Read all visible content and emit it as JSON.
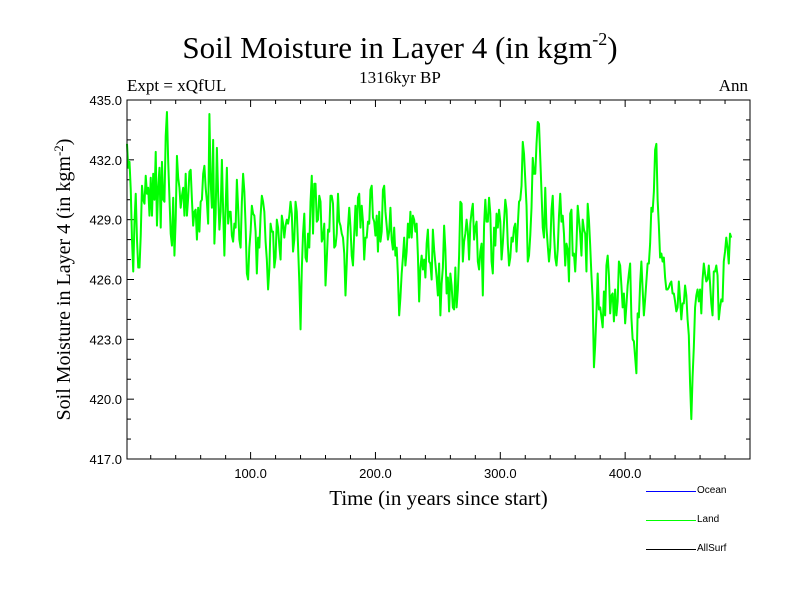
{
  "header": {
    "title": "Soil Moisture in Layer 4 (in kgm",
    "title_sup": "-2",
    "title_end": ")",
    "subtitle": "1316kyr BP",
    "expt": "Expt = xQfUL",
    "season": "Ann"
  },
  "legend": [
    {
      "label": "Ocean",
      "color": "#0000ff"
    },
    {
      "label": "Land",
      "color": "#00ff00"
    },
    {
      "label": "AllSurf",
      "color": "#000000"
    }
  ],
  "chart_data": {
    "type": "line",
    "title": "Soil Moisture in Layer 4 (in kgm-2)",
    "xlabel": "Time (in years since start)",
    "ylabel": "Soil Moisture in Layer 4 (in kgm-2)",
    "xlim": [
      1,
      500
    ],
    "ylim": [
      417.0,
      435.0
    ],
    "xticks": [
      100,
      200,
      300,
      400
    ],
    "xtick_labels": [
      "100.0",
      "200.0",
      "300.0",
      "400.0"
    ],
    "yticks": [
      417,
      420,
      423,
      426,
      429,
      432,
      435
    ],
    "ytick_labels": [
      "417.0",
      "420.0",
      "423.0",
      "426.0",
      "429.0",
      "432.0",
      "435.0"
    ],
    "series": [
      {
        "name": "Land",
        "color": "#00ff00",
        "x_start": 1,
        "x_step": 1,
        "values": [
          432.8,
          431.6,
          431.9,
          430.5,
          428.0,
          426.4,
          428.9,
          430.3,
          428.0,
          426.6,
          426.6,
          428.2,
          430.7,
          430.0,
          429.8,
          431.2,
          430.3,
          430.6,
          429.2,
          431.1,
          429.2,
          431.3,
          430.0,
          432.4,
          428.7,
          430.6,
          431.6,
          428.6,
          431.9,
          430.0,
          429.9,
          433.2,
          434.4,
          431.9,
          430.1,
          428.3,
          427.7,
          430.1,
          427.2,
          429.0,
          432.2,
          431.1,
          430.6,
          429.6,
          430.2,
          430.6,
          429.2,
          431.3,
          429.2,
          430.1,
          431.4,
          431.5,
          430.0,
          428.7,
          429.4,
          429.5,
          428.0,
          429.6,
          428.4,
          429.9,
          430.0,
          431.3,
          431.7,
          430.6,
          429.9,
          428.8,
          434.3,
          430.9,
          429.6,
          433.0,
          427.8,
          429.3,
          432.6,
          430.3,
          428.5,
          429.4,
          432.0,
          429.5,
          427.2,
          429.6,
          431.6,
          428.8,
          429.4,
          429.4,
          428.2,
          427.9,
          428.8,
          428.6,
          431.0,
          429.6,
          428.0,
          427.6,
          429.9,
          431.3,
          430.4,
          428.7,
          426.3,
          426.0,
          427.6,
          428.4,
          429.7,
          429.3,
          429.2,
          428.4,
          426.3,
          428.1,
          427.6,
          429.2,
          430.2,
          429.9,
          429.4,
          427.9,
          427.0,
          425.5,
          426.5,
          428.8,
          428.4,
          428.4,
          426.6,
          427.1,
          429.0,
          428.6,
          427.7,
          427.0,
          429.2,
          428.8,
          428.1,
          428.7,
          429.0,
          428.8,
          429.2,
          429.9,
          429.3,
          427.4,
          428.0,
          429.9,
          429.4,
          427.7,
          425.9,
          423.5,
          426.5,
          428.3,
          429.3,
          427.1,
          426.9,
          428.3,
          427.6,
          429.9,
          431.2,
          428.3,
          430.8,
          430.8,
          428.9,
          429.0,
          430.2,
          429.9,
          427.9,
          428.1,
          428.8,
          425.7,
          427.0,
          428.5,
          428.4,
          430.2,
          430.2,
          429.8,
          427.6,
          427.7,
          428.3,
          430.3,
          428.9,
          428.7,
          428.3,
          428.1,
          427.3,
          425.2,
          426.8,
          428.6,
          429.6,
          428.6,
          427.2,
          426.7,
          428.3,
          429.7,
          428.2,
          430.1,
          430.3,
          428.6,
          429.7,
          428.9,
          427.0,
          428.1,
          428.1,
          428.9,
          428.8,
          430.5,
          430.7,
          429.1,
          428.9,
          428.2,
          429.2,
          427.4,
          429.4,
          427.9,
          428.4,
          430.5,
          430.7,
          429.4,
          428.7,
          428.0,
          428.4,
          429.6,
          428.0,
          427.5,
          428.6,
          427.2,
          427.6,
          426.2,
          424.2,
          425.1,
          426.3,
          427.1,
          428.1,
          426.7,
          427.4,
          428.8,
          428.1,
          429.4,
          428.1,
          429.2,
          429.0,
          428.4,
          428.8,
          427.2,
          424.9,
          426.6,
          427.2,
          426.5,
          427.0,
          426.1,
          427.8,
          428.5,
          426.9,
          426.8,
          426.0,
          428.5,
          427.5,
          426.8,
          426.1,
          425.2,
          426.8,
          424.2,
          425.8,
          426.6,
          428.7,
          427.5,
          425.3,
          426.1,
          424.4,
          426.3,
          425.7,
          424.6,
          424.5,
          426.6,
          424.6,
          425.5,
          427.2,
          429.9,
          429.8,
          426.9,
          427.9,
          428.3,
          429.0,
          428.4,
          427.0,
          428.8,
          429.4,
          429.8,
          428.0,
          428.6,
          428.9,
          426.9,
          426.5,
          427.4,
          427.8,
          425.2,
          428.7,
          430.0,
          428.9,
          428.9,
          430.1,
          429.3,
          426.9,
          426.3,
          428.6,
          427.7,
          429.3,
          428.6,
          429.5,
          428.9,
          427.0,
          427.8,
          428.9,
          430.0,
          429.5,
          427.8,
          426.7,
          427.1,
          428.1,
          427.9,
          428.6,
          428.8,
          427.4,
          428.7,
          429.9,
          430.0,
          430.7,
          432.9,
          432.3,
          431.0,
          429.7,
          426.9,
          427.2,
          428.2,
          429.6,
          432.1,
          431.3,
          431.3,
          432.8,
          433.9,
          433.8,
          432.1,
          430.4,
          428.6,
          428.1,
          430.6,
          428.6,
          427.7,
          426.9,
          427.6,
          429.5,
          430.2,
          428.3,
          427.1,
          426.7,
          427.5,
          429.2,
          430.3,
          428.9,
          429.2,
          428.3,
          426.7,
          427.8,
          427.5,
          425.9,
          429.3,
          429.5,
          427.2,
          427.3,
          426.4,
          427.7,
          429.7,
          429.0,
          428.3,
          427.2,
          429.0,
          428.5,
          428.3,
          426.4,
          429.8,
          429.0,
          427.7,
          426.2,
          425.0,
          421.6,
          422.7,
          424.3,
          426.3,
          424.5,
          424.6,
          424.1,
          423.6,
          425.4,
          424.2,
          426.7,
          427.2,
          426.2,
          424.3,
          425.2,
          425.3,
          423.9,
          425.5,
          424.2,
          424.9,
          426.9,
          426.7,
          425.7,
          424.6,
          425.3,
          423.8,
          424.7,
          425.7,
          426.3,
          426.8,
          424.1,
          423.0,
          422.9,
          422.1,
          421.3,
          424.3,
          424.1,
          425.8,
          426.9,
          425.5,
          424.2,
          425.0,
          425.9,
          426.8,
          426.8,
          427.8,
          429.6,
          429.4,
          430.4,
          432.5,
          432.8,
          430.0,
          428.7,
          427.1,
          427.3,
          426.9,
          427.1,
          426.1,
          425.5,
          425.5,
          425.6,
          425.8,
          425.9,
          425.3,
          425.3,
          424.9,
          424.4,
          424.6,
          425.9,
          425.0,
          424.0,
          424.8,
          424.8,
          425.7,
          425.2,
          424.0,
          423.2,
          420.8,
          419.0,
          421.1,
          422.6,
          424.6,
          425.2,
          425.5,
          424.9,
          425.5,
          424.3,
          426.0,
          426.8,
          426.3,
          425.9,
          426.0,
          426.7,
          425.8,
          424.8,
          424.2,
          426.4,
          426.4,
          426.7,
          426.2,
          424.0,
          424.6,
          425.0,
          424.9,
          426.9,
          427.4,
          428.1,
          427.6,
          426.8,
          428.3,
          428.1
        ]
      },
      {
        "name": "Ocean",
        "color": "#0000ff",
        "values": []
      },
      {
        "name": "AllSurf",
        "color": "#000000",
        "values": []
      }
    ]
  }
}
